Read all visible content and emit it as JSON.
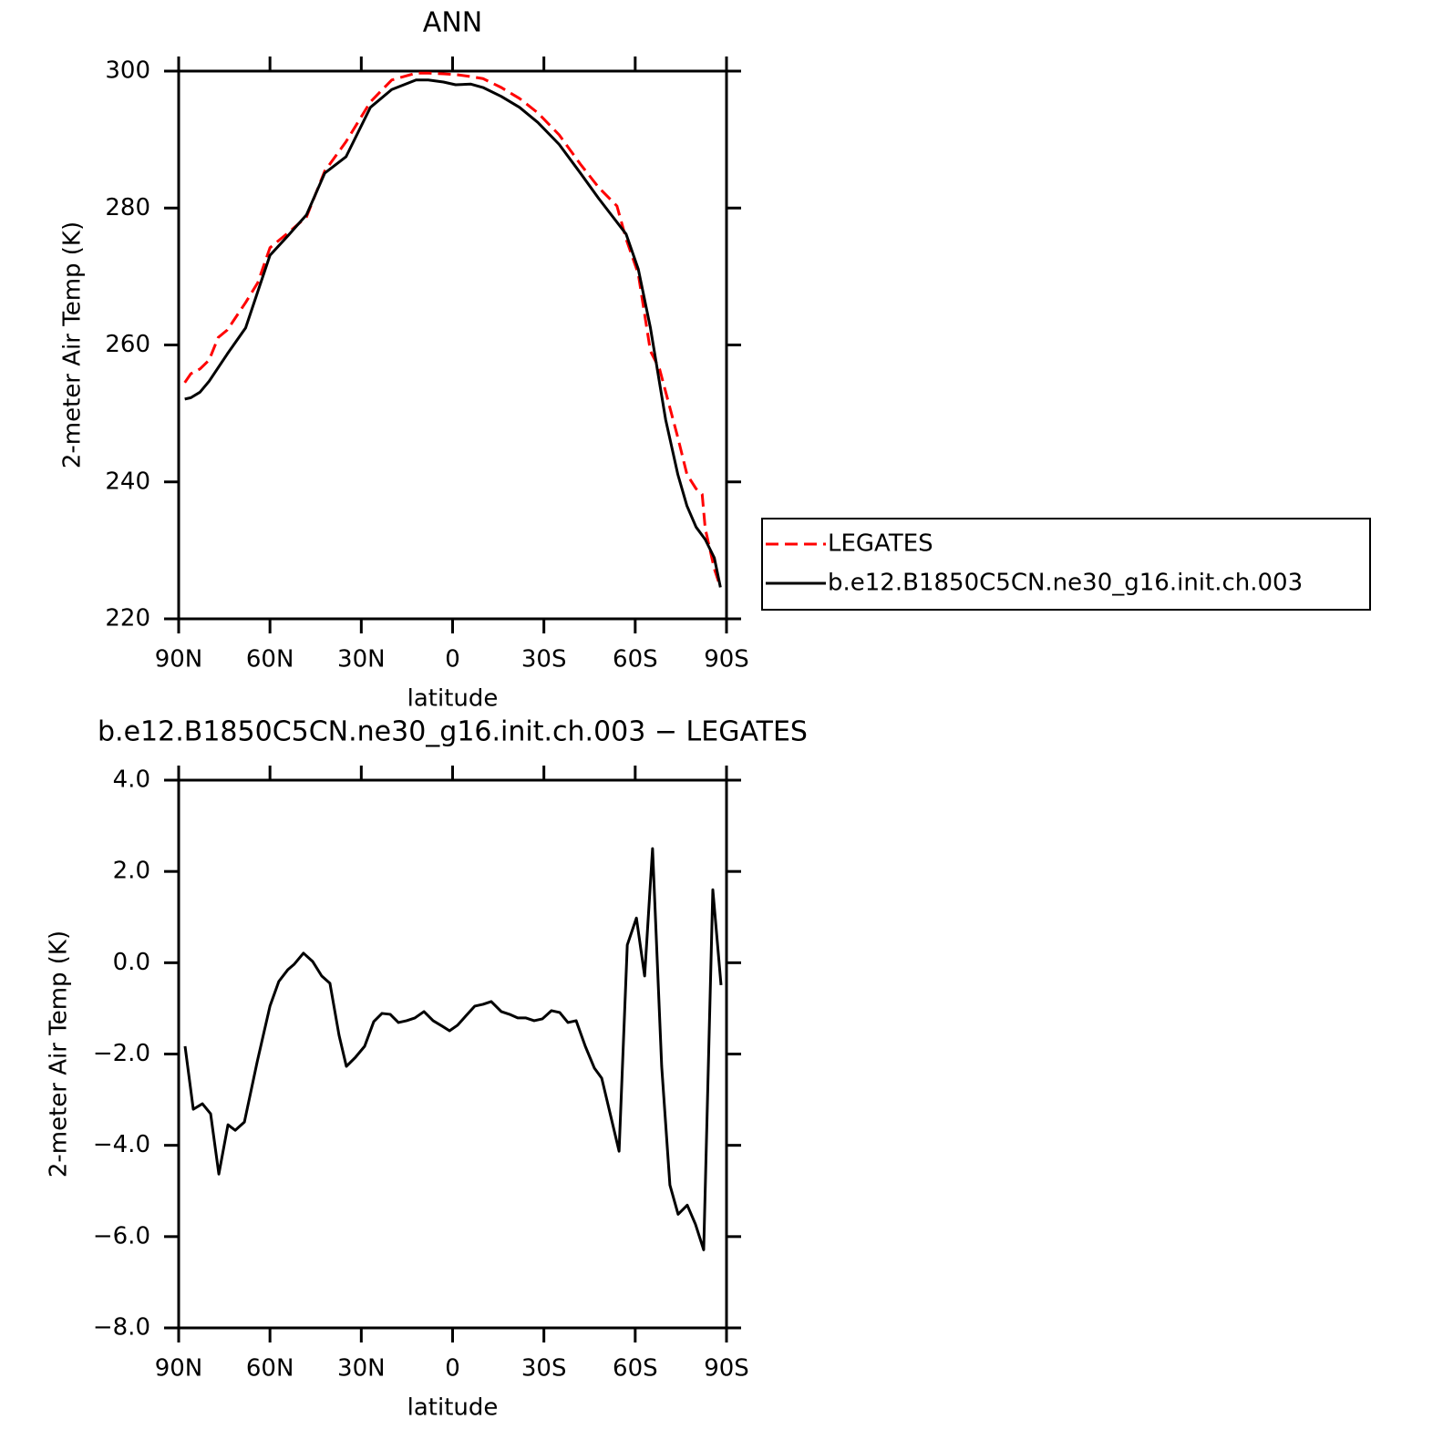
{
  "chart_data": [
    {
      "type": "line",
      "title": "ANN",
      "xlabel": "latitude",
      "ylabel": "2-meter Air Temp (K)",
      "xlim": [
        90,
        -90
      ],
      "xticks": [
        {
          "value": 90,
          "label": "90N"
        },
        {
          "value": 60,
          "label": "60N"
        },
        {
          "value": 30,
          "label": "30N"
        },
        0,
        {
          "value": -30,
          "label": "30S"
        },
        {
          "value": -60,
          "label": "60S"
        },
        {
          "value": -90,
          "label": "90S"
        }
      ],
      "ylim": [
        220,
        300
      ],
      "yticks": [
        220,
        240,
        260,
        280,
        300
      ],
      "legend": "right",
      "series": [
        {
          "name": "LEGATES",
          "color": "#ff0000",
          "dash": "dashed",
          "x": [
            88,
            86,
            83,
            80,
            77,
            74,
            68,
            64,
            60,
            54,
            48,
            42,
            35,
            27,
            20,
            12,
            8,
            3,
            -1,
            -6,
            -10,
            -16,
            -22,
            -28,
            -35,
            -42,
            -48,
            -54,
            -57,
            -61,
            -65,
            -68,
            -74,
            -77,
            -80,
            -82,
            -83,
            -86,
            -88
          ],
          "values": [
            254.5,
            255.8,
            256.5,
            257.8,
            261.1,
            262.2,
            266.2,
            269.1,
            274.2,
            276.4,
            278.7,
            285.4,
            289.7,
            295.5,
            298.7,
            299.7,
            299.7,
            299.6,
            299.5,
            299.2,
            298.9,
            297.6,
            296.0,
            293.9,
            290.7,
            286.4,
            283.0,
            280.3,
            275.5,
            270.4,
            259.1,
            256.5,
            246.5,
            241.1,
            239.0,
            238.2,
            233.2,
            227.3,
            224.6
          ]
        },
        {
          "name": "b.e12.B1850C5CN.ne30_g16.init.ch.003",
          "color": "#000000",
          "dash": "solid",
          "x": [
            88,
            86,
            83,
            80,
            74,
            68,
            64,
            60,
            54,
            48,
            42,
            35,
            27,
            20,
            12,
            8,
            3,
            -1,
            -6,
            -10,
            -16,
            -22,
            -28,
            -35,
            -42,
            -48,
            -57,
            -61,
            -65,
            -70,
            -74,
            -77,
            -80,
            -83,
            -86,
            -88
          ],
          "values": [
            252.1,
            252.3,
            253.1,
            254.7,
            258.7,
            262.5,
            267.8,
            273.1,
            276.0,
            279.0,
            285.1,
            287.5,
            294.7,
            297.3,
            298.7,
            298.7,
            298.4,
            298.0,
            298.1,
            297.6,
            296.3,
            294.7,
            292.5,
            289.3,
            285.1,
            281.4,
            276.2,
            271.1,
            262.5,
            249.1,
            241.1,
            236.5,
            233.4,
            231.6,
            228.9,
            224.6
          ]
        }
      ]
    },
    {
      "type": "line",
      "title": "b.e12.B1850C5CN.ne30_g16.init.ch.003 − LEGATES",
      "xlabel": "latitude",
      "ylabel": "2-meter Air Temp (K)",
      "xlim": [
        90,
        -90
      ],
      "xticks": [
        {
          "value": 90,
          "label": "90N"
        },
        {
          "value": 60,
          "label": "60N"
        },
        {
          "value": 30,
          "label": "30N"
        },
        0,
        {
          "value": -30,
          "label": "30S"
        },
        {
          "value": -60,
          "label": "60S"
        },
        {
          "value": -90,
          "label": "90S"
        }
      ],
      "ylim": [
        -8,
        4
      ],
      "yticks": [
        {
          "value": -8,
          "label": "−8.0"
        },
        {
          "value": -6,
          "label": "−6.0"
        },
        {
          "value": -4,
          "label": "−4.0"
        },
        {
          "value": -2,
          "label": "−2.0"
        },
        {
          "value": 0,
          "label": "0.0"
        },
        {
          "value": 2,
          "label": "2.0"
        },
        {
          "value": 4,
          "label": "4.0"
        }
      ],
      "color": "#000000",
      "x": [
        87.9,
        85.2,
        82.2,
        79.5,
        76.8,
        73.8,
        71.4,
        68.4,
        64.2,
        60.0,
        57.1,
        54.1,
        52.0,
        49.0,
        46.0,
        43.0,
        40.3,
        37.3,
        34.9,
        31.9,
        28.9,
        25.9,
        23.2,
        20.5,
        17.8,
        15.1,
        12.4,
        9.4,
        6.4,
        3.4,
        1.0,
        -1.6,
        -4.3,
        -7.3,
        -10.0,
        -12.7,
        -16.0,
        -18.7,
        -21.4,
        -24.1,
        -26.8,
        -29.5,
        -32.5,
        -35.2,
        -37.9,
        -40.6,
        -43.6,
        -46.6,
        -49.0,
        -52.0,
        -54.7,
        -57.4,
        -60.4,
        -63.1,
        -65.7,
        -68.7,
        -71.4,
        -74.1,
        -77.1,
        -79.8,
        -82.5,
        -85.5,
        -88.2
      ],
      "values": [
        -1.83,
        -3.21,
        -3.09,
        -3.31,
        -4.63,
        -3.55,
        -3.67,
        -3.49,
        -2.17,
        -0.95,
        -0.41,
        -0.15,
        -0.03,
        0.21,
        0.03,
        -0.29,
        -0.45,
        -1.59,
        -2.27,
        -2.07,
        -1.83,
        -1.29,
        -1.11,
        -1.13,
        -1.31,
        -1.27,
        -1.21,
        -1.07,
        -1.27,
        -1.39,
        -1.49,
        -1.37,
        -1.17,
        -0.95,
        -0.91,
        -0.85,
        -1.07,
        -1.13,
        -1.21,
        -1.21,
        -1.27,
        -1.23,
        -1.05,
        -1.09,
        -1.31,
        -1.27,
        -1.83,
        -2.31,
        -2.53,
        -3.37,
        -4.13,
        0.39,
        0.98,
        -0.29,
        2.5,
        -2.27,
        -4.87,
        -5.51,
        -5.31,
        -5.73,
        -6.29,
        1.6,
        -0.49
      ]
    }
  ]
}
